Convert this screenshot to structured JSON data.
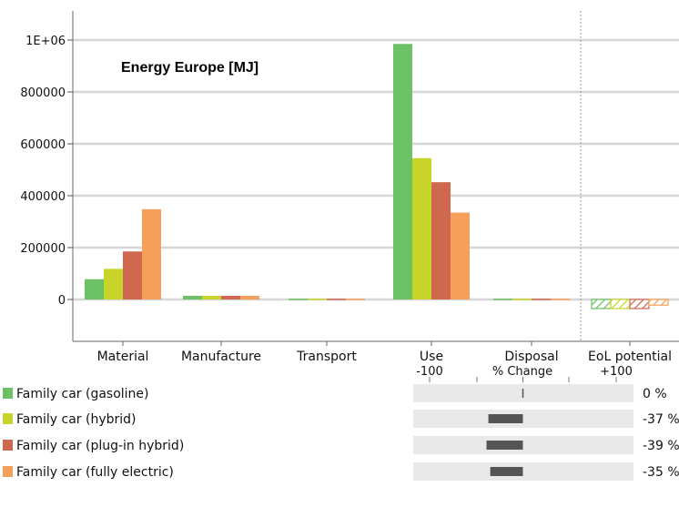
{
  "chart_data": {
    "type": "bar",
    "title": "Energy Europe [MJ]",
    "ylim": [
      -160000,
      1100000
    ],
    "y_ticks": [
      0,
      200000,
      400000,
      600000,
      800000,
      1000000
    ],
    "y_tick_labels": [
      "0",
      "200000",
      "400000",
      "600000",
      "800000",
      "1E+06"
    ],
    "categories": [
      "Material",
      "Manufacture",
      "Transport",
      "Use",
      "Disposal",
      "EoL potential"
    ],
    "grid": true,
    "legend_position": "bottom-left",
    "series": [
      {
        "name": "Family car (gasoline)",
        "color": "#6cc165",
        "values": [
          78000,
          14000,
          3000,
          985000,
          3000,
          -35000
        ],
        "pct_change": 0,
        "pct_label": "0 %"
      },
      {
        "name": "Family car (hybrid)",
        "color": "#c8d42a",
        "values": [
          118000,
          14000,
          3000,
          545000,
          3000,
          -35000
        ],
        "pct_change": -37,
        "pct_label": "-37 %"
      },
      {
        "name": "Family car (plug-in hybrid)",
        "color": "#d0674f",
        "values": [
          185000,
          14000,
          3000,
          452000,
          3000,
          -35000
        ],
        "pct_change": -39,
        "pct_label": "-39 %"
      },
      {
        "name": "Family car (fully electric)",
        "color": "#f5a05a",
        "values": [
          348000,
          14000,
          3000,
          335000,
          3000,
          -22000
        ],
        "pct_change": -35,
        "pct_label": "-35 %"
      }
    ],
    "change_panel": {
      "label": "% Change",
      "min_label": "-100",
      "max_label": "+100",
      "range": [
        -100,
        100
      ]
    }
  }
}
